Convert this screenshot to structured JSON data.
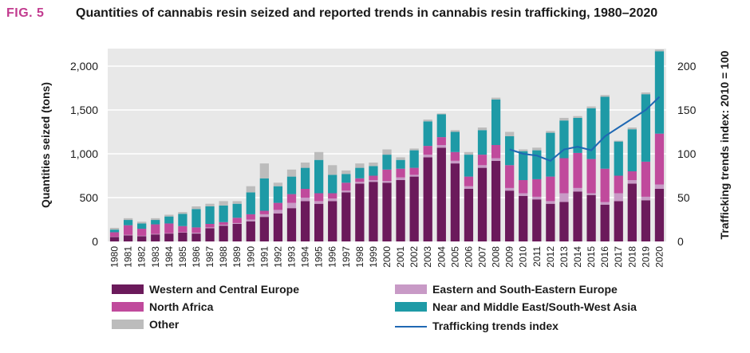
{
  "figure": {
    "label": "FIG. 5",
    "title": "Quantities of cannabis resin seized and reported trends in cannabis resin trafficking, 1980–2020"
  },
  "chart_data": {
    "type": "bar",
    "stacked": true,
    "title": "Quantities of cannabis resin seized and reported trends in cannabis resin trafficking, 1980–2020",
    "xlabel": "",
    "ylabel": "Quantities seized (tons)",
    "y2label": "Trafficking trends index: 2010 = 100",
    "ylim": [
      0,
      2200
    ],
    "y2lim": [
      0,
      220
    ],
    "yticks": [
      0,
      500,
      1000,
      1500,
      2000
    ],
    "ytick_labels": [
      "0",
      "500",
      "1,000",
      "1,500",
      "2,000"
    ],
    "y2ticks": [
      0,
      50,
      100,
      150,
      200
    ],
    "y2tick_labels": [
      "0",
      "50",
      "100",
      "150",
      "200"
    ],
    "grid": true,
    "legend_position": "bottom",
    "categories": [
      "1980",
      "1981",
      "1982",
      "1983",
      "1984",
      "1985",
      "1986",
      "1987",
      "1988",
      "1989",
      "1990",
      "1991",
      "1992",
      "1993",
      "1994",
      "1995",
      "1996",
      "1997",
      "1998",
      "1999",
      "2000",
      "2001",
      "2002",
      "2003",
      "2004",
      "2005",
      "2006",
      "2007",
      "2008",
      "2009",
      "2010",
      "2011",
      "2012",
      "2013",
      "2014",
      "2015",
      "2016",
      "2017",
      "2018",
      "2019",
      "2020"
    ],
    "series": [
      {
        "name": "Western and Central Europe",
        "color": "#6b1a5b",
        "values": [
          50,
          70,
          60,
          80,
          90,
          100,
          90,
          150,
          180,
          200,
          230,
          280,
          320,
          380,
          460,
          430,
          460,
          560,
          660,
          680,
          670,
          700,
          740,
          960,
          1070,
          890,
          600,
          840,
          920,
          580,
          520,
          480,
          430,
          450,
          570,
          530,
          420,
          460,
          660,
          470,
          600
        ]
      },
      {
        "name": "Eastern and South-Eastern Europe",
        "color": "#c89ac6",
        "values": [
          5,
          5,
          5,
          5,
          5,
          5,
          10,
          10,
          10,
          10,
          20,
          30,
          40,
          60,
          40,
          30,
          30,
          20,
          20,
          20,
          20,
          30,
          20,
          30,
          30,
          30,
          30,
          30,
          30,
          30,
          30,
          30,
          30,
          100,
          40,
          20,
          30,
          90,
          40,
          40,
          50
        ]
      },
      {
        "name": "North Africa",
        "color": "#c04a9c",
        "values": [
          50,
          110,
          80,
          110,
          110,
          70,
          60,
          40,
          30,
          60,
          60,
          40,
          80,
          100,
          100,
          90,
          60,
          90,
          40,
          50,
          130,
          100,
          80,
          100,
          90,
          100,
          110,
          120,
          150,
          260,
          150,
          200,
          280,
          400,
          400,
          390,
          380,
          200,
          100,
          400,
          580
        ]
      },
      {
        "name": "Near and Middle East/South-West Asia",
        "color": "#1e9aa6",
        "values": [
          30,
          60,
          60,
          50,
          80,
          140,
          210,
          200,
          190,
          160,
          250,
          370,
          190,
          200,
          240,
          380,
          210,
          100,
          120,
          110,
          170,
          100,
          200,
          280,
          260,
          230,
          250,
          280,
          520,
          330,
          330,
          330,
          500,
          430,
          400,
          580,
          820,
          390,
          480,
          770,
          940
        ]
      },
      {
        "name": "Other",
        "color": "#bcbcbc",
        "values": [
          20,
          20,
          20,
          20,
          20,
          20,
          30,
          30,
          50,
          30,
          70,
          170,
          40,
          80,
          60,
          90,
          110,
          40,
          50,
          40,
          60,
          30,
          20,
          20,
          10,
          20,
          30,
          30,
          20,
          50,
          20,
          30,
          20,
          30,
          20,
          20,
          20,
          10,
          20,
          20,
          20
        ]
      }
    ],
    "line_series": {
      "name": "Trafficking trends index",
      "color": "#1f68b3",
      "x": [
        "2009",
        "2010",
        "2011",
        "2012",
        "2013",
        "2014",
        "2015",
        "2016",
        "2017",
        "2018",
        "2019",
        "2020"
      ],
      "values": [
        105,
        100,
        98,
        92,
        105,
        108,
        104,
        120,
        130,
        140,
        150,
        165
      ]
    }
  }
}
